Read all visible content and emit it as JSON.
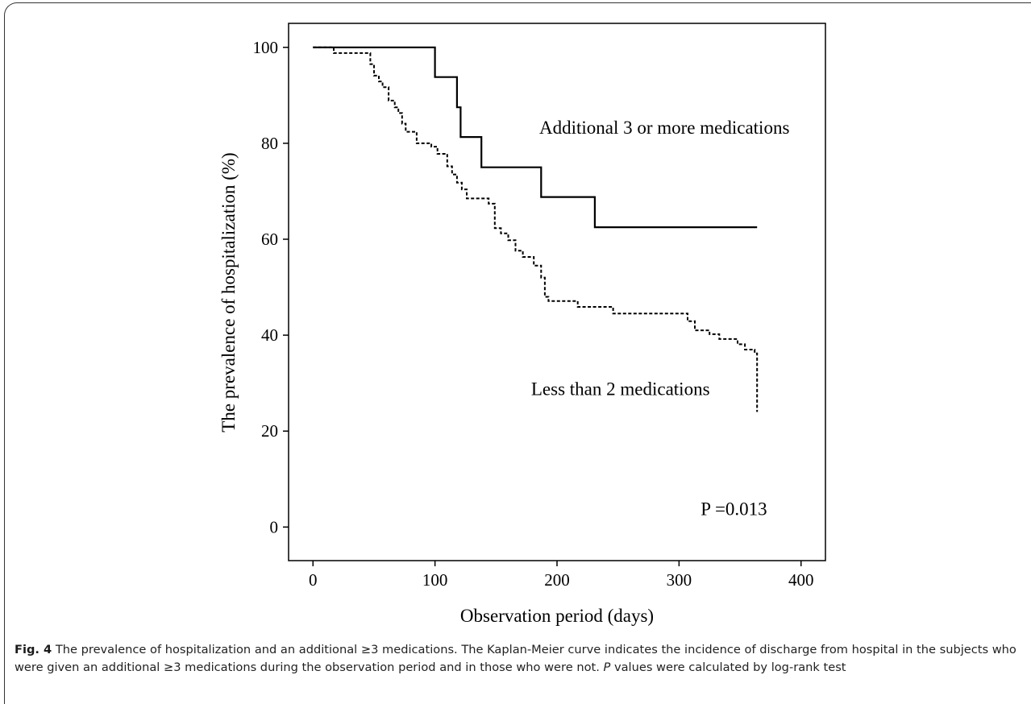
{
  "chart_data": {
    "type": "line",
    "title": "",
    "xlabel": "Observation period (days)",
    "ylabel": "The prevalence of hospitalization (%)",
    "xlim": [
      -20,
      420
    ],
    "ylim": [
      -7,
      105
    ],
    "x_ticks": [
      0,
      100,
      200,
      300,
      400
    ],
    "y_ticks": [
      0,
      20,
      40,
      60,
      80,
      100
    ],
    "grid": false,
    "series": [
      {
        "name": "Additional 3 or more medications",
        "line_style": "solid",
        "step": true,
        "points": [
          [
            0,
            100
          ],
          [
            100,
            100
          ],
          [
            100,
            93.8
          ],
          [
            118,
            93.8
          ],
          [
            118,
            87.5
          ],
          [
            121,
            87.5
          ],
          [
            121,
            81.3
          ],
          [
            138,
            81.3
          ],
          [
            138,
            75
          ],
          [
            187,
            75
          ],
          [
            187,
            68.8
          ],
          [
            231,
            68.8
          ],
          [
            231,
            62.5
          ],
          [
            364,
            62.5
          ]
        ]
      },
      {
        "name": "Less than 2 medications",
        "line_style": "dashed",
        "step": true,
        "points": [
          [
            0,
            100
          ],
          [
            17,
            100
          ],
          [
            17,
            98.8
          ],
          [
            47,
            98.8
          ],
          [
            47,
            96.5
          ],
          [
            50,
            96.5
          ],
          [
            50,
            94.1
          ],
          [
            54,
            94.1
          ],
          [
            54,
            92.9
          ],
          [
            57,
            92.9
          ],
          [
            57,
            91.7
          ],
          [
            62,
            91.7
          ],
          [
            62,
            88.9
          ],
          [
            67,
            88.9
          ],
          [
            67,
            87.5
          ],
          [
            70,
            87.5
          ],
          [
            70,
            86.3
          ],
          [
            73,
            86.3
          ],
          [
            73,
            84.1
          ],
          [
            76,
            84.1
          ],
          [
            76,
            82.4
          ],
          [
            85,
            82.4
          ],
          [
            85,
            80
          ],
          [
            97,
            80
          ],
          [
            97,
            79.3
          ],
          [
            102,
            79.3
          ],
          [
            102,
            77.8
          ],
          [
            110,
            77.8
          ],
          [
            110,
            75.2
          ],
          [
            114,
            75.2
          ],
          [
            114,
            73.5
          ],
          [
            118,
            73.5
          ],
          [
            118,
            71.8
          ],
          [
            122,
            71.8
          ],
          [
            122,
            70.4
          ],
          [
            126,
            70.4
          ],
          [
            126,
            68.5
          ],
          [
            144,
            68.5
          ],
          [
            144,
            67.4
          ],
          [
            149,
            67.4
          ],
          [
            149,
            62.3
          ],
          [
            154,
            62.3
          ],
          [
            154,
            61.2
          ],
          [
            160,
            61.2
          ],
          [
            160,
            59.8
          ],
          [
            166,
            59.8
          ],
          [
            166,
            57.6
          ],
          [
            172,
            57.6
          ],
          [
            172,
            56.3
          ],
          [
            181,
            56.3
          ],
          [
            181,
            54.5
          ],
          [
            187,
            54.5
          ],
          [
            187,
            52
          ],
          [
            190,
            52
          ],
          [
            190,
            48
          ],
          [
            193,
            48
          ],
          [
            193,
            47.1
          ],
          [
            217,
            47.1
          ],
          [
            217,
            45.9
          ],
          [
            246,
            45.9
          ],
          [
            246,
            44.5
          ],
          [
            307,
            44.5
          ],
          [
            307,
            42.9
          ],
          [
            313,
            42.9
          ],
          [
            313,
            41
          ],
          [
            325,
            41
          ],
          [
            325,
            40.2
          ],
          [
            333,
            40.2
          ],
          [
            333,
            39.2
          ],
          [
            348,
            39.2
          ],
          [
            348,
            38.1
          ],
          [
            354,
            38.1
          ],
          [
            354,
            37
          ],
          [
            362,
            37
          ],
          [
            362,
            36.2
          ],
          [
            364,
            36.2
          ],
          [
            364,
            24
          ]
        ]
      }
    ],
    "annotations": [
      {
        "text": "Additional 3 or more medications",
        "x": 288,
        "y": 82,
        "anchor": "middle"
      },
      {
        "text": "Less than 2 medications",
        "x": 252,
        "y": 27.5,
        "anchor": "middle"
      },
      {
        "text": "P =0.013",
        "x": 345,
        "y": 2.5,
        "anchor": "middle"
      }
    ]
  },
  "caption": {
    "label": "Fig. 4",
    "text_before_italic": " The prevalence of hospitalization and an additional ≥3 medications. The Kaplan-Meier curve indicates the incidence of discharge from hospital in the subjects who were given an additional ≥3 medications during the observation period and in those who were not. ",
    "italic": "P",
    "text_after_italic": " values were calculated by log-rank test"
  }
}
